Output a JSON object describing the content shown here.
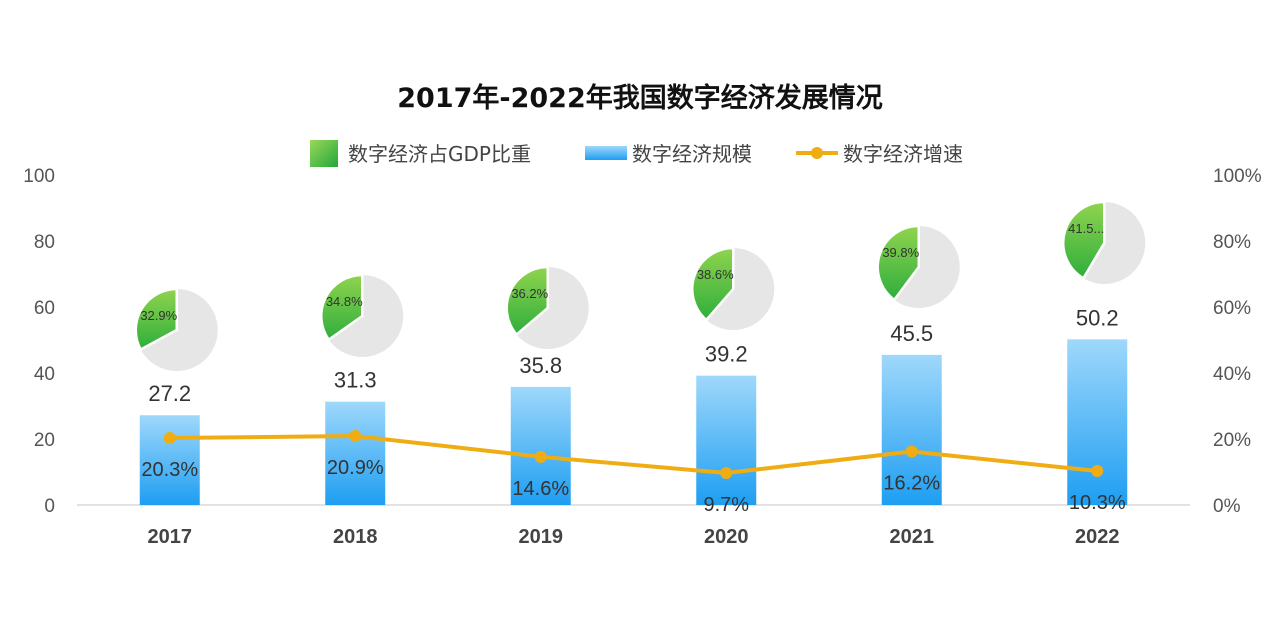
{
  "chart_data": {
    "type": "bar",
    "title": "2017年-2022年我国数字经济发展情况",
    "categories": [
      "2017",
      "2018",
      "2019",
      "2020",
      "2021",
      "2022"
    ],
    "ylim": [
      0,
      100
    ],
    "yticks": [
      "0",
      "20",
      "40",
      "60",
      "80",
      "100"
    ],
    "y2lim": [
      0,
      100
    ],
    "y2ticks": [
      "0%",
      "20%",
      "40%",
      "60%",
      "80%",
      "100%"
    ],
    "grid": false,
    "legend_position": "top",
    "series": [
      {
        "name": "数字经济占GDP比重",
        "type": "pie",
        "values": [
          32.9,
          34.8,
          36.2,
          38.6,
          39.8,
          41.5
        ],
        "labels": [
          "32.9%",
          "34.8%",
          "36.2%",
          "38.6%",
          "39.8%",
          "41.5..."
        ],
        "color": "#5cbf3e",
        "remainder_color": "#e6e6e6"
      },
      {
        "name": "数字经济规模",
        "type": "bar",
        "values": [
          27.2,
          31.3,
          35.8,
          39.2,
          45.5,
          50.2
        ],
        "labels": [
          "27.2",
          "31.3",
          "35.8",
          "39.2",
          "45.5",
          "50.2"
        ],
        "color_top": "#9fd8fb",
        "color_bottom": "#1e9ef2"
      },
      {
        "name": "数字经济增速",
        "type": "line",
        "axis": "right",
        "values": [
          20.3,
          20.9,
          14.6,
          9.7,
          16.2,
          10.3
        ],
        "labels": [
          "20.3%",
          "20.9%",
          "14.6%",
          "9.7%",
          "16.2%",
          "10.3%"
        ],
        "color": "#f0ad13"
      }
    ]
  }
}
